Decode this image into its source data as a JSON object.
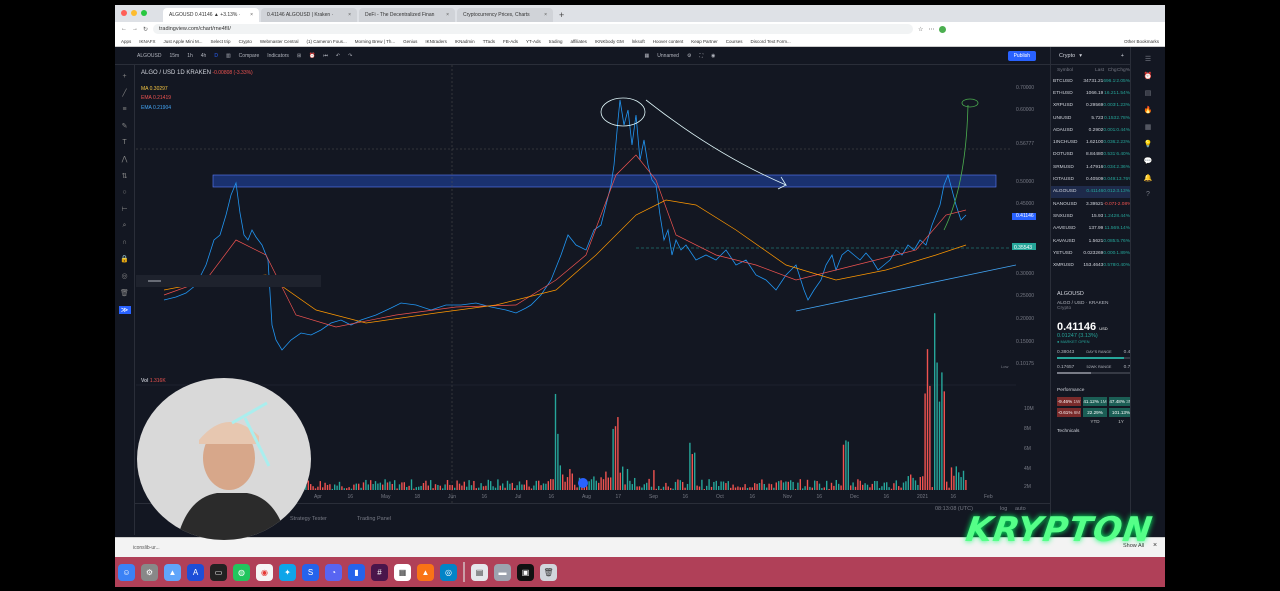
{
  "browser": {
    "tabs": [
      {
        "label": "ALGOUSD 0.41146 ▲ +3.13% ·",
        "active": true
      },
      {
        "label": "0.41146 ALGOUSD | Kraken ·",
        "active": false
      },
      {
        "label": "DeFi - The Decentralized Finan",
        "active": false
      },
      {
        "label": "Cryptocurrency Prices, Charts",
        "active": false
      }
    ],
    "new_tab": "+",
    "url": "tradingview.com/chart/rne4fII/",
    "bookmarks": [
      "Apps",
      "IKNAFX",
      "Just Apple Mini M...",
      "Select trip",
      "Crypto",
      "Webmaster Central",
      "(1) Cameron Fous...",
      "Morning Brew | Th...",
      "Genius",
      "IKNtraders",
      "IKNadmin",
      "TTads",
      "FB-Ads",
      "YT-Ads",
      "trading",
      "affiliates",
      "IKNKbody GM",
      "lnksoft",
      "Hoover content",
      "Keap Partner",
      "Courses",
      "Discord Text Form...",
      "Other Bookmarks"
    ]
  },
  "toolbar": {
    "symbol": "ALGOUSD",
    "intervals": [
      "15m",
      "1h",
      "4h",
      "D"
    ],
    "compare": "Compare",
    "indicators": "Indicators",
    "unnamed": "Unnamed",
    "publish": "Publish"
  },
  "legend": {
    "symbol_line": "ALGO / USD  1D  KRAKEN",
    "change": "-0.00808 (-3.33%)",
    "ma": "MA  0.30297",
    "ema1": "EMA  0.21419",
    "ema2": "EMA  0.21904"
  },
  "price_axis": [
    "0.70000",
    "0.60000",
    "0.56777",
    "0.50000",
    "0.45000",
    "0.41146",
    "0.35000",
    "0.30000",
    "0.25000",
    "0.20000",
    "0.15000",
    "0.10175"
  ],
  "price_tags": {
    "current": "0.41146",
    "level": "0.35543",
    "low_label": "Low",
    "low": "0.10175"
  },
  "volume": {
    "label": "Vol",
    "value": "1.316K",
    "axis": [
      "10M",
      "8M",
      "6M",
      "4M",
      "2M"
    ],
    "tag": "1.316K"
  },
  "time_axis": [
    "Apr",
    "16",
    "May",
    "18",
    "Jun",
    "16",
    "Jul",
    "16",
    "Aug",
    "17",
    "Sep",
    "16",
    "Oct",
    "16",
    "Nov",
    "16",
    "Dec",
    "16",
    "2021",
    "16",
    "Feb"
  ],
  "bottom": {
    "tabs": [
      "Strategy Tester",
      "Trading Panel"
    ],
    "clock": "08:13:08 (UTC)",
    "log": "log",
    "auto": "auto"
  },
  "watchlist": {
    "title": "Crypto",
    "columns": [
      "Symbol",
      "Last",
      "Chg",
      "Chg%"
    ],
    "rows": [
      {
        "s": "BTCUSD",
        "p": "34731.21",
        "c": "696.19",
        "cp": "2.05%",
        "up": true
      },
      {
        "s": "ETHUSD",
        "p": "1066.19",
        "c": "16.21",
        "cp": "1.54%",
        "up": true
      },
      {
        "s": "XRPUSD",
        "p": "0.29569",
        "c": "0.00359",
        "cp": "1.23%",
        "up": true
      },
      {
        "s": "UNIUSD",
        "p": "5.723",
        "c": "0.153",
        "cp": "2.78%",
        "up": true
      },
      {
        "s": "ADAUSD",
        "p": "0.2902",
        "c": "0.00125",
        "cp": "0.44%",
        "up": true
      },
      {
        "s": "1INCHUSD",
        "p": "1.62100",
        "c": "0.03622",
        "cp": "2.23%",
        "up": true
      },
      {
        "s": "DOTUSD",
        "p": "8.84480",
        "c": "0.53176",
        "cp": "6.40%",
        "up": true
      },
      {
        "s": "SRMUSD",
        "p": "1.47916",
        "c": "0.03425",
        "cp": "2.36%",
        "up": true
      },
      {
        "s": "IOTAUSD",
        "p": "0.40509",
        "c": "0.04936",
        "cp": "13.76%",
        "up": true
      },
      {
        "s": "ALGOUSD",
        "p": "0.41146",
        "c": "0.01247",
        "cp": "3.13%",
        "up": true,
        "hl": true
      },
      {
        "s": "NANOUSD",
        "p": "3.39521",
        "c": "-0.0719",
        "cp": "-2.08%",
        "up": false
      },
      {
        "s": "SNXUSD",
        "p": "15.93",
        "c": "1.242",
        "cp": "8.44%",
        "up": true
      },
      {
        "s": "AAVEUSD",
        "p": "137.99",
        "c": "11.56",
        "cp": "9.14%",
        "up": true
      },
      {
        "s": "KAVAUSD",
        "p": "1.5621",
        "c": "0.0852",
        "cp": "5.76%",
        "up": true
      },
      {
        "s": "YETUSD",
        "p": "0.023269",
        "c": "0.00044",
        "cp": "1.89%",
        "up": true
      },
      {
        "s": "XMRUSD",
        "p": "153.4643",
        "c": "0.57889",
        "cp": "0.40%",
        "up": true
      }
    ],
    "detail": {
      "symbol": "ALGOUSD",
      "pair": "ALGO / USD · KRAKEN",
      "category": "Crypto",
      "price": "0.41146",
      "currency": "USD",
      "change": "0.01247 (3.13%)",
      "market": "● MARKET OPEN",
      "days_range_low": "0.38043",
      "days_range_label": "DAY'S RANGE",
      "days_range_high": "0.41302",
      "week_low": "0.17657",
      "week_label": "52WK RANGE",
      "week_high": "0.76000",
      "perf_title": "Performance",
      "perf": [
        {
          "v": "-9.46%",
          "l": "1W",
          "up": false
        },
        {
          "v": "41.12%",
          "l": "1M",
          "up": true
        },
        {
          "v": "47.48%",
          "l": "3M",
          "up": true
        },
        {
          "v": "-0.61%",
          "l": "6M",
          "up": false
        },
        {
          "v": "22.29%",
          "l": "YTD",
          "up": true
        },
        {
          "v": "101.13%",
          "l": "1Y",
          "up": true
        }
      ],
      "technicals": "Technicals"
    }
  },
  "overlay": {
    "brand": "KRYPTON"
  },
  "download": {
    "file": "iconslib-ur...",
    "show_all": "Show All",
    "close": "×"
  }
}
